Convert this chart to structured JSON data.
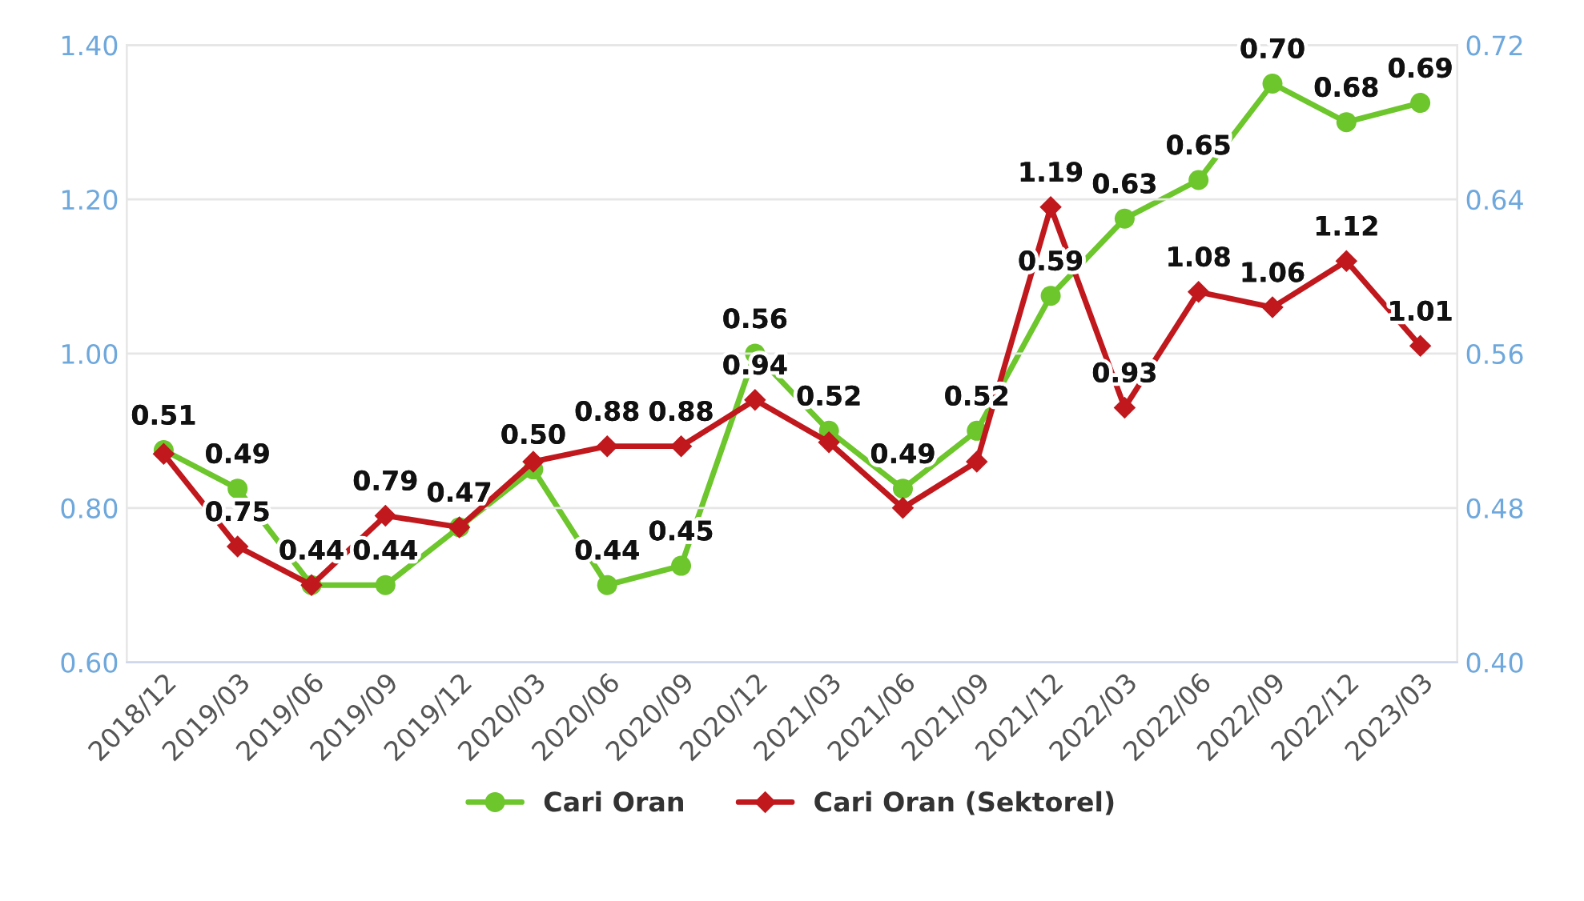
{
  "chart_data": {
    "type": "line",
    "categories": [
      "2018/12",
      "2019/03",
      "2019/06",
      "2019/09",
      "2019/12",
      "2020/03",
      "2020/06",
      "2020/09",
      "2020/12",
      "2021/03",
      "2021/06",
      "2021/09",
      "2021/12",
      "2022/03",
      "2022/06",
      "2022/09",
      "2022/12",
      "2023/03"
    ],
    "series": [
      {
        "name": "Cari Oran",
        "color": "#6cc62c",
        "axis": "y2",
        "marker": "circle",
        "values": [
          0.51,
          0.49,
          0.44,
          0.44,
          0.47,
          0.5,
          0.44,
          0.45,
          0.56,
          0.52,
          0.49,
          0.52,
          0.59,
          0.63,
          0.65,
          0.7,
          0.68,
          0.69
        ],
        "value_labels": [
          "0.51",
          "0.49",
          "0.44",
          "0.44",
          "0.47",
          "0.50",
          "0.44",
          "0.45",
          "0.56",
          "0.52",
          "0.49",
          "0.52",
          "0.59",
          "0.63",
          "0.65",
          "0.70",
          "0.68",
          "0.69"
        ]
      },
      {
        "name": "Cari Oran (Sektorel)",
        "color": "#c0181d",
        "axis": "y",
        "marker": "diamond",
        "values": [
          0.87,
          0.75,
          0.7,
          0.79,
          0.775,
          0.86,
          0.88,
          0.88,
          0.94,
          0.885,
          0.8,
          0.86,
          1.19,
          0.93,
          1.08,
          1.06,
          1.12,
          1.01
        ],
        "value_labels": [
          null,
          "0.75",
          null,
          "0.79",
          null,
          null,
          "0.88",
          "0.88",
          "0.94",
          null,
          null,
          null,
          "1.19",
          "0.93",
          "1.08",
          "1.06",
          "1.12",
          "1.01"
        ]
      }
    ],
    "ylim": [
      0.6,
      1.4
    ],
    "yticks": [
      "0.60",
      "0.80",
      "1.00",
      "1.20",
      "1.40"
    ],
    "y2lim": [
      0.4,
      0.72
    ],
    "y2ticks": [
      "0.40",
      "0.48",
      "0.56",
      "0.64",
      "0.72"
    ],
    "grid": "y",
    "legend": "bottom",
    "line_style": "solid"
  }
}
